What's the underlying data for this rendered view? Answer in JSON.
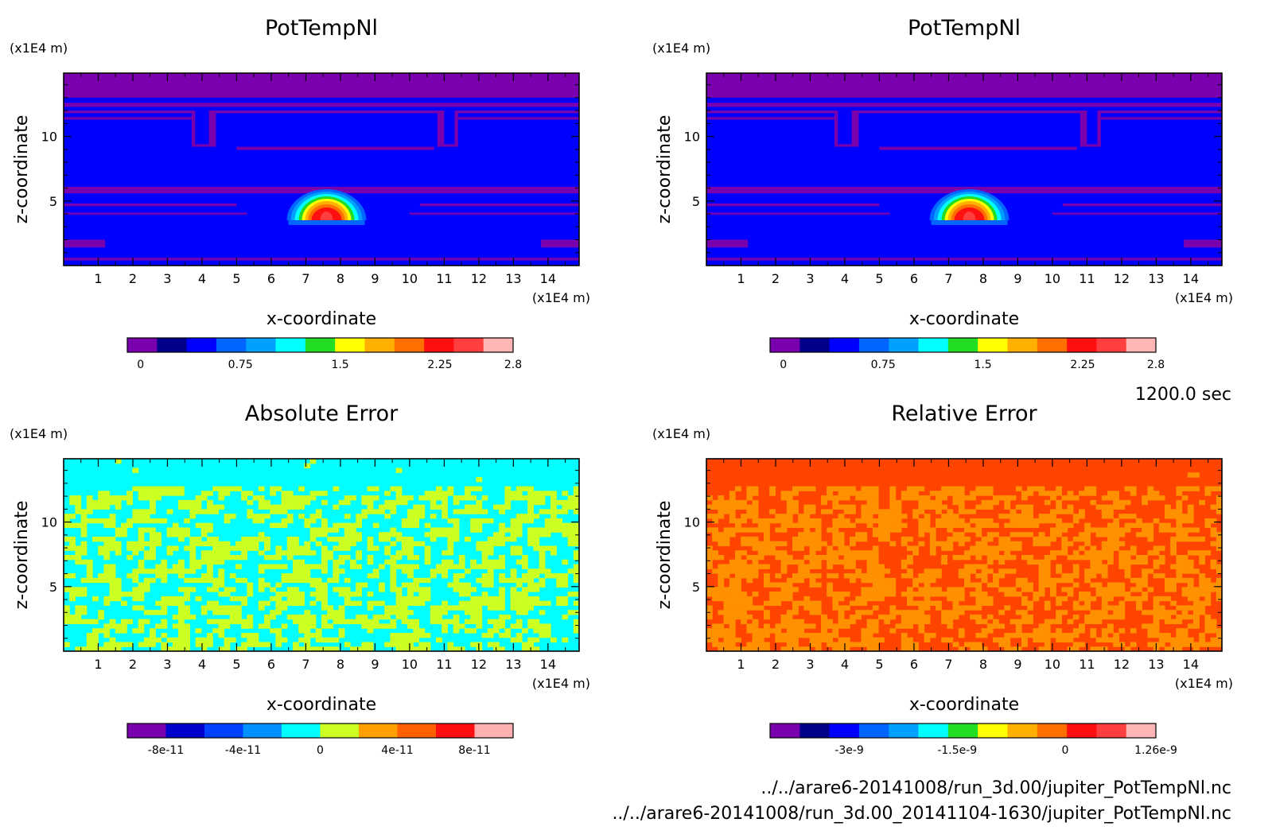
{
  "chart_data": [
    {
      "type": "heatmap",
      "title": "PotTempNl",
      "xlabel": "x-coordinate",
      "ylabel": "z-coordinate",
      "x_unit": "(x1E4 m)",
      "z_unit": "(x1E4 m)",
      "xlim": [
        0,
        14.9
      ],
      "zlim": [
        0,
        14.9
      ],
      "x_ticks": [
        "1",
        "2",
        "3",
        "4",
        "5",
        "6",
        "7",
        "8",
        "9",
        "10",
        "11",
        "12",
        "13",
        "14"
      ],
      "z_ticks": [
        "5",
        "10"
      ],
      "pattern": "bubble",
      "bubble": {
        "x": 7.6,
        "z": 4.0,
        "peak": 2.8
      },
      "colorbar": {
        "min": -0.1,
        "max": 2.8,
        "colors": [
          "#7b00ad",
          "#00008b",
          "#0000ff",
          "#0064ff",
          "#00a0ff",
          "#00ffff",
          "#22dd22",
          "#ffff00",
          "#ffb000",
          "#ff7000",
          "#ff1010",
          "#ff3f3f",
          "#ffb6b6"
        ],
        "tick_labels": [
          "0",
          "0.75",
          "1.5",
          "2.25",
          "2.8"
        ],
        "tick_values": [
          0,
          0.75,
          1.5,
          2.25,
          2.8
        ]
      }
    },
    {
      "type": "heatmap",
      "title": "PotTempNl",
      "xlabel": "x-coordinate",
      "ylabel": "z-coordinate",
      "x_unit": "(x1E4 m)",
      "z_unit": "(x1E4 m)",
      "xlim": [
        0,
        14.9
      ],
      "zlim": [
        0,
        14.9
      ],
      "x_ticks": [
        "1",
        "2",
        "3",
        "4",
        "5",
        "6",
        "7",
        "8",
        "9",
        "10",
        "11",
        "12",
        "13",
        "14"
      ],
      "z_ticks": [
        "5",
        "10"
      ],
      "pattern": "bubble",
      "bubble": {
        "x": 7.6,
        "z": 4.0,
        "peak": 2.8
      },
      "colorbar": {
        "min": -0.1,
        "max": 2.8,
        "colors": [
          "#7b00ad",
          "#00008b",
          "#0000ff",
          "#0064ff",
          "#00a0ff",
          "#00ffff",
          "#22dd22",
          "#ffff00",
          "#ffb000",
          "#ff7000",
          "#ff1010",
          "#ff3f3f",
          "#ffb6b6"
        ],
        "tick_labels": [
          "0",
          "0.75",
          "1.5",
          "2.25",
          "2.8"
        ],
        "tick_values": [
          0,
          0.75,
          1.5,
          2.25,
          2.8
        ]
      }
    },
    {
      "type": "heatmap",
      "title": "Absolute Error",
      "xlabel": "x-coordinate",
      "ylabel": "z-coordinate",
      "x_unit": "(x1E4 m)",
      "z_unit": "(x1E4 m)",
      "xlim": [
        0,
        14.9
      ],
      "zlim": [
        0,
        14.9
      ],
      "x_ticks": [
        "1",
        "2",
        "3",
        "4",
        "5",
        "6",
        "7",
        "8",
        "9",
        "10",
        "11",
        "12",
        "13",
        "14"
      ],
      "z_ticks": [
        "5",
        "10"
      ],
      "pattern": "noise",
      "field_colors": [
        "#00ffff",
        "#ccff22"
      ],
      "colorbar": {
        "min": -1e-10,
        "max": 1e-10,
        "colors": [
          "#7b00ad",
          "#0000cc",
          "#0040ff",
          "#0090ff",
          "#00ffff",
          "#ccff22",
          "#ffa000",
          "#ff6000",
          "#ff1010",
          "#ffb0b0"
        ],
        "tick_labels": [
          "-8e-11",
          "-4e-11",
          "0",
          "4e-11",
          "8e-11"
        ],
        "tick_values": [
          -8e-11,
          -4e-11,
          0,
          4e-11,
          8e-11
        ]
      }
    },
    {
      "type": "heatmap",
      "title": "Relative Error",
      "xlabel": "x-coordinate",
      "ylabel": "z-coordinate",
      "x_unit": "(x1E4 m)",
      "z_unit": "(x1E4 m)",
      "xlim": [
        0,
        14.9
      ],
      "zlim": [
        0,
        14.9
      ],
      "x_ticks": [
        "1",
        "2",
        "3",
        "4",
        "5",
        "6",
        "7",
        "8",
        "9",
        "10",
        "11",
        "12",
        "13",
        "14"
      ],
      "z_ticks": [
        "5",
        "10"
      ],
      "pattern": "noise",
      "field_colors": [
        "#ff4400",
        "#ff9000"
      ],
      "colorbar": {
        "min": -4.1e-09,
        "max": 1.26e-09,
        "colors": [
          "#7b00ad",
          "#00008b",
          "#0000ff",
          "#0064ff",
          "#00a0ff",
          "#00ffff",
          "#22dd22",
          "#ffff00",
          "#ffb000",
          "#ff7000",
          "#ff1010",
          "#ff3f3f",
          "#ffb6b6"
        ],
        "tick_labels": [
          "-3e-9",
          "-1.5e-9",
          "0",
          "1.26e-9"
        ],
        "tick_values": [
          -3e-09,
          -1.5e-09,
          0,
          1.26e-09
        ]
      }
    }
  ],
  "time_label": "1200.0 sec",
  "footer": {
    "file1": "../../arare6-20141008/run_3d.00/jupiter_PotTempNl.nc",
    "file2": "../../arare6-20141008/run_3d.00_20141104-1630/jupiter_PotTempNl.nc"
  }
}
